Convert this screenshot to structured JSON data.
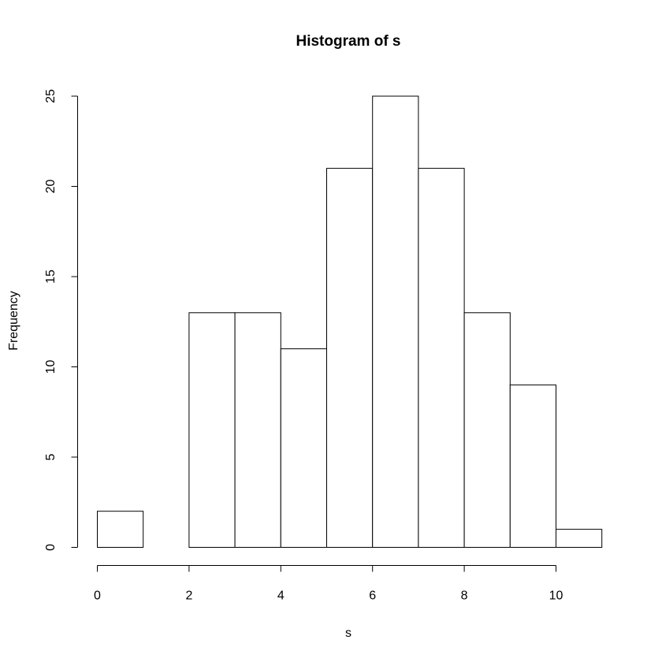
{
  "chart_data": {
    "type": "bar",
    "title": "Histogram of s",
    "xlabel": "s",
    "ylabel": "Frequency",
    "bins": [
      {
        "start": 0,
        "end": 1,
        "count": 2
      },
      {
        "start": 1,
        "end": 2,
        "count": 0
      },
      {
        "start": 2,
        "end": 3,
        "count": 13
      },
      {
        "start": 3,
        "end": 4,
        "count": 13
      },
      {
        "start": 4,
        "end": 5,
        "count": 11
      },
      {
        "start": 5,
        "end": 6,
        "count": 21
      },
      {
        "start": 6,
        "end": 7,
        "count": 25
      },
      {
        "start": 7,
        "end": 8,
        "count": 21
      },
      {
        "start": 8,
        "end": 9,
        "count": 13
      },
      {
        "start": 9,
        "end": 10,
        "count": 9
      },
      {
        "start": 10,
        "end": 11,
        "count": 1
      }
    ],
    "xticks": [
      0,
      2,
      4,
      6,
      8,
      10
    ],
    "yticks": [
      0,
      5,
      10,
      15,
      20,
      25
    ],
    "xlim": [
      0,
      11
    ],
    "ylim": [
      0,
      25
    ],
    "grid": false,
    "legend": "none",
    "colors": {
      "bar_fill": "#ffffff",
      "bar_stroke": "#000000"
    }
  }
}
